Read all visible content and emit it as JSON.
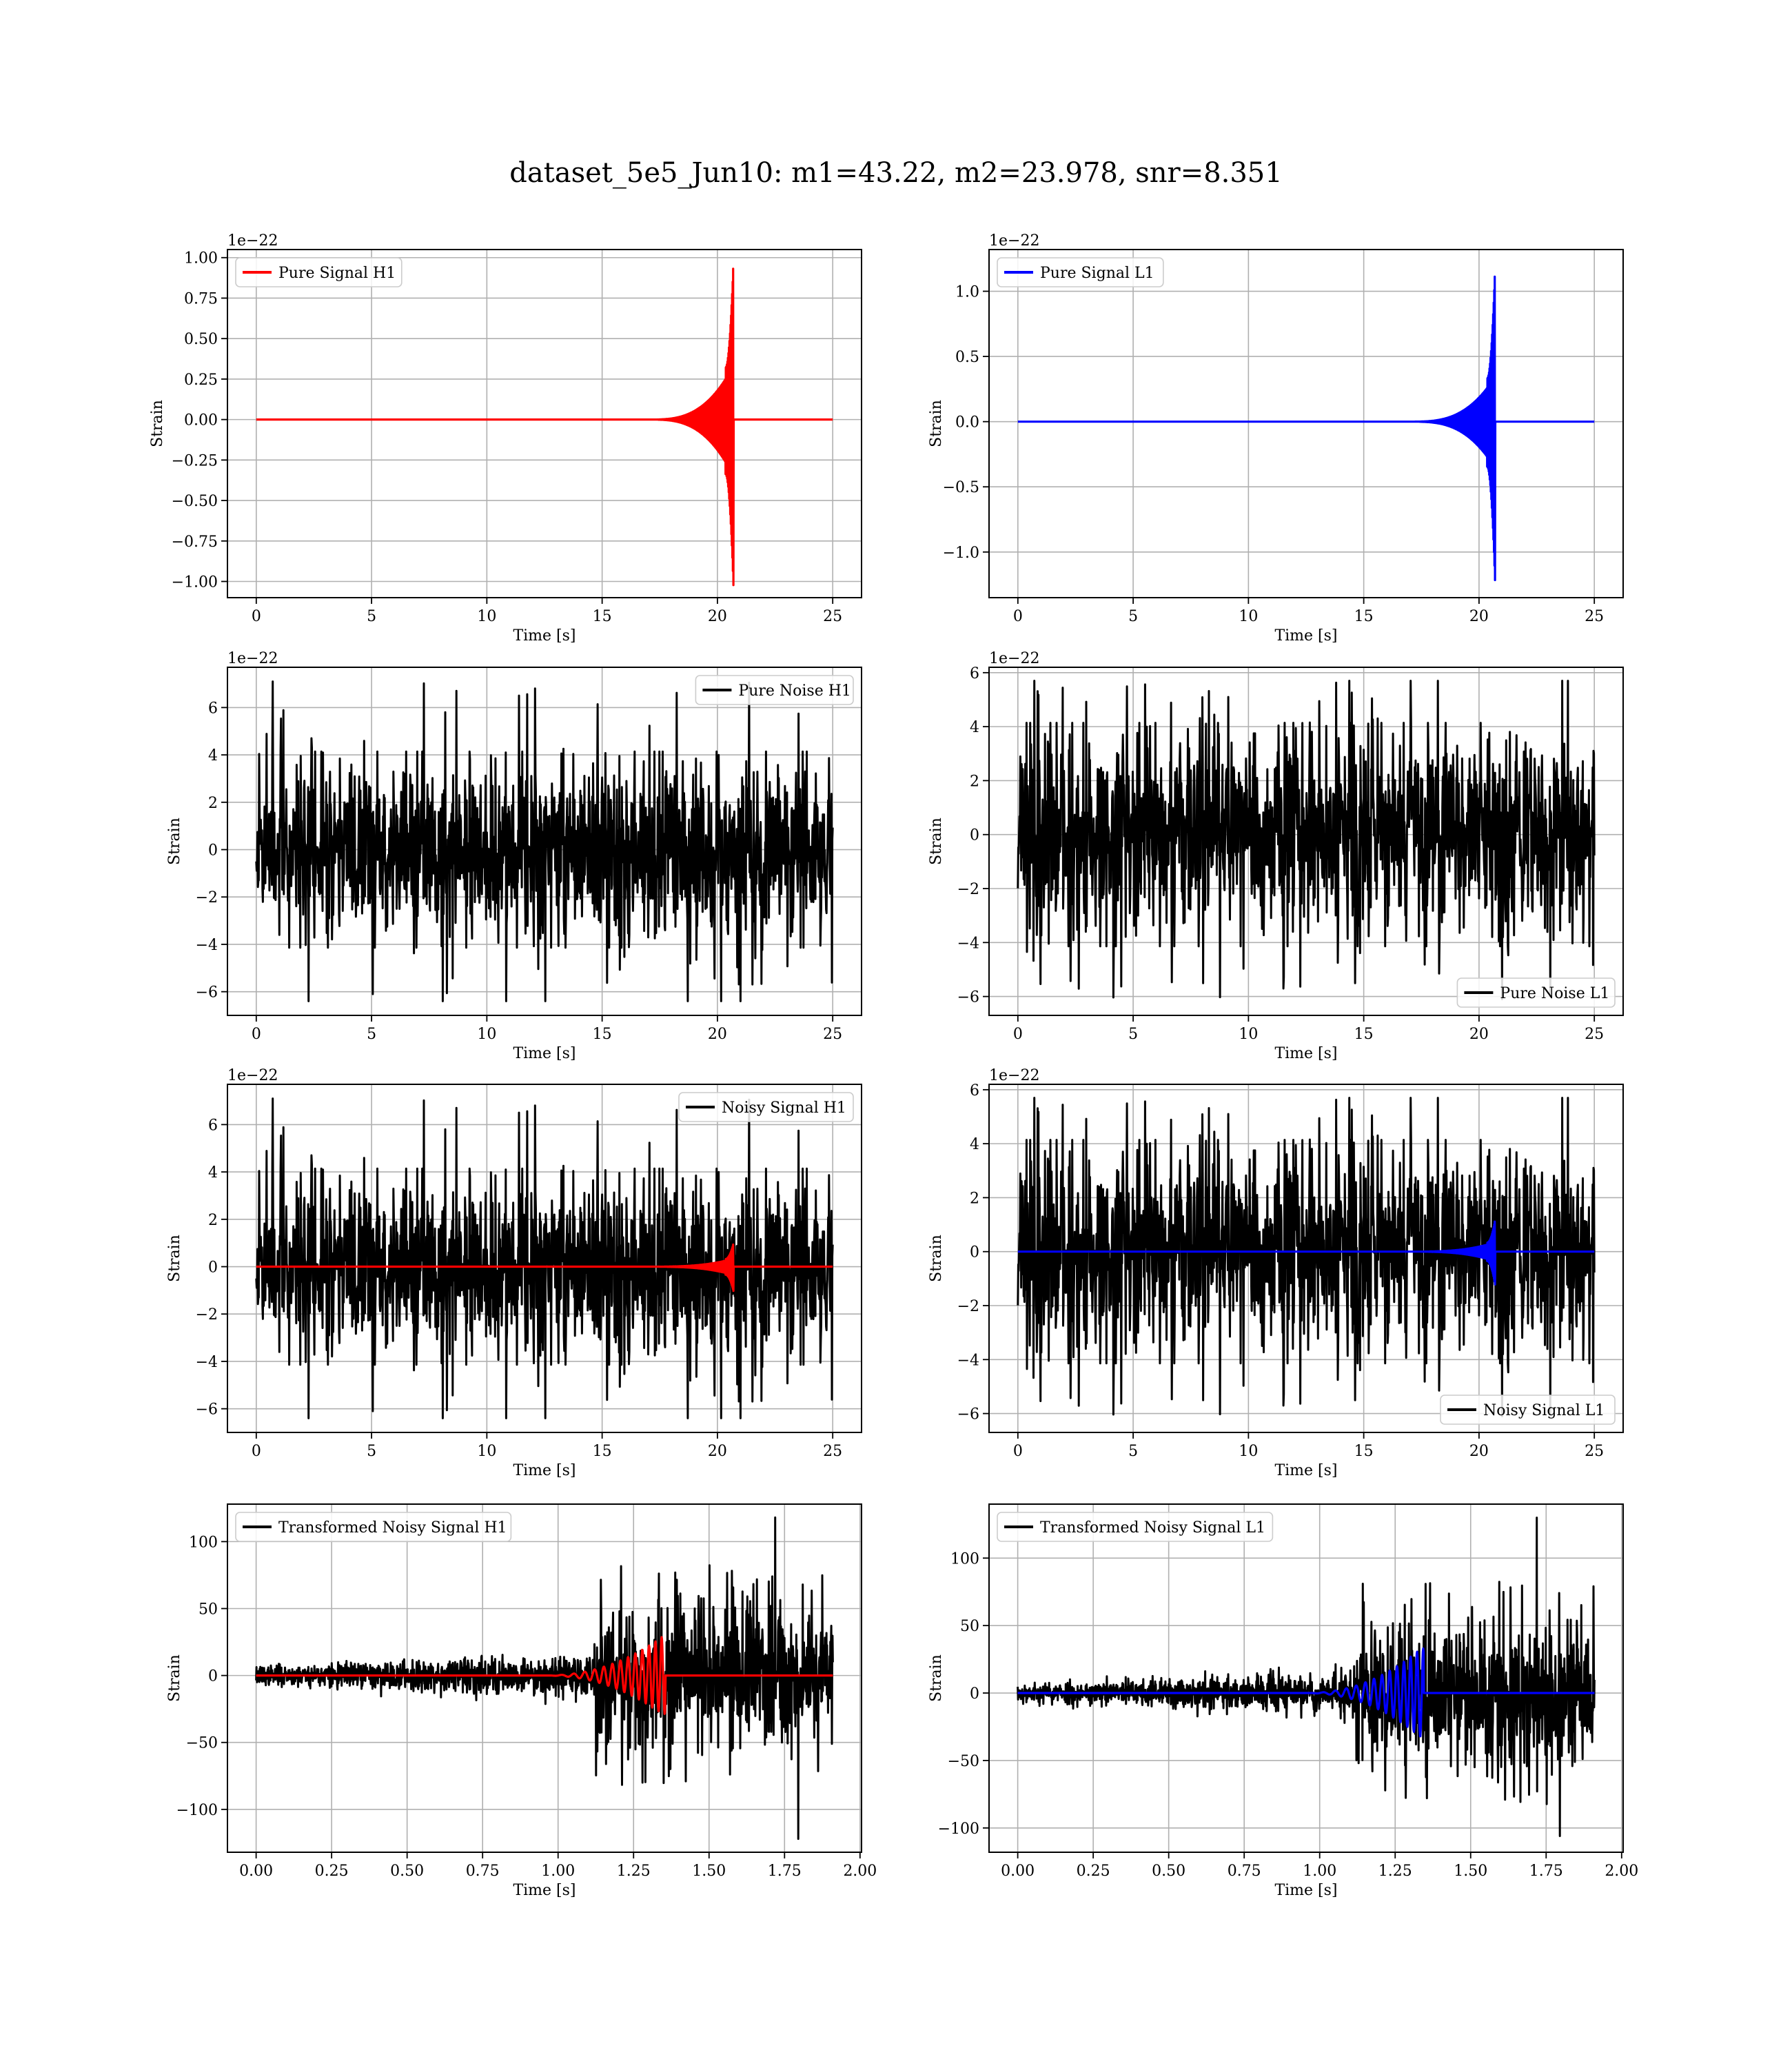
{
  "suptitle": "dataset_5e5_Jun10: m1=43.22, m2=23.978, snr=8.351",
  "chart_data": [
    {
      "id": "pure-signal-h1",
      "type": "line",
      "offset_text": "1e−22",
      "ylabel": "Strain",
      "xlabel": "Time [s]",
      "xlim": [
        -1.25,
        26.25
      ],
      "ylim": [
        -1.1,
        1.05
      ],
      "xticks": [
        0,
        5,
        10,
        15,
        20,
        25
      ],
      "xtick_labels": [
        "0",
        "5",
        "10",
        "15",
        "20",
        "25"
      ],
      "yticks": [
        -1.0,
        -0.75,
        -0.5,
        -0.25,
        0.0,
        0.25,
        0.5,
        0.75,
        1.0
      ],
      "ytick_labels": [
        "−1.00",
        "−0.75",
        "−0.50",
        "−0.25",
        "0.00",
        "0.25",
        "0.50",
        "0.75",
        "1.00"
      ],
      "grid": true,
      "legend_loc": "upper left",
      "series": [
        {
          "name": "Pure Signal H1",
          "color": "#ff0000",
          "kind": "chirp",
          "x_range": [
            0,
            25
          ],
          "peak_time": 20.7,
          "peak_pos": 1.0,
          "peak_neg": -1.05,
          "shoulder": 0.32,
          "onset": 17.0
        }
      ]
    },
    {
      "id": "pure-signal-l1",
      "type": "line",
      "offset_text": "1e−22",
      "ylabel": "Strain",
      "xlabel": "Time [s]",
      "xlim": [
        -1.25,
        26.25
      ],
      "ylim": [
        -1.35,
        1.32
      ],
      "xticks": [
        0,
        5,
        10,
        15,
        20,
        25
      ],
      "xtick_labels": [
        "0",
        "5",
        "10",
        "15",
        "20",
        "25"
      ],
      "yticks": [
        -1.0,
        -0.5,
        0.0,
        0.5,
        1.0
      ],
      "ytick_labels": [
        "−1.0",
        "−0.5",
        "0.0",
        "0.5",
        "1.0"
      ],
      "grid": true,
      "legend_loc": "upper left",
      "series": [
        {
          "name": "Pure Signal L1",
          "color": "#0000ff",
          "kind": "chirp",
          "x_range": [
            0,
            25
          ],
          "peak_time": 20.7,
          "peak_pos": 1.2,
          "peak_neg": -1.25,
          "shoulder": 0.33,
          "onset": 17.0
        }
      ]
    },
    {
      "id": "pure-noise-h1",
      "type": "line",
      "offset_text": "1e−22",
      "ylabel": "Strain",
      "xlabel": "Time [s]",
      "xlim": [
        -1.25,
        26.25
      ],
      "ylim": [
        -7.0,
        7.7
      ],
      "xticks": [
        0,
        5,
        10,
        15,
        20,
        25
      ],
      "xtick_labels": [
        "0",
        "5",
        "10",
        "15",
        "20",
        "25"
      ],
      "yticks": [
        -6,
        -4,
        -2,
        0,
        2,
        4,
        6
      ],
      "ytick_labels": [
        "−6",
        "−4",
        "−2",
        "0",
        "2",
        "4",
        "6"
      ],
      "grid": true,
      "legend_loc": "upper right",
      "series": [
        {
          "name": "Pure Noise H1",
          "color": "#000000",
          "kind": "noise",
          "x_range": [
            0,
            25
          ],
          "envelope": 3.6,
          "max": 7.1,
          "min": -6.4,
          "seed": 11
        }
      ]
    },
    {
      "id": "pure-noise-l1",
      "type": "line",
      "offset_text": "1e−22",
      "ylabel": "Strain",
      "xlabel": "Time [s]",
      "xlim": [
        -1.25,
        26.25
      ],
      "ylim": [
        -6.7,
        6.2
      ],
      "xticks": [
        0,
        5,
        10,
        15,
        20,
        25
      ],
      "xtick_labels": [
        "0",
        "5",
        "10",
        "15",
        "20",
        "25"
      ],
      "yticks": [
        -6,
        -4,
        -2,
        0,
        2,
        4,
        6
      ],
      "ytick_labels": [
        "−6",
        "−4",
        "−2",
        "0",
        "2",
        "4",
        "6"
      ],
      "grid": true,
      "legend_loc": "lower right",
      "series": [
        {
          "name": "Pure Noise L1",
          "color": "#000000",
          "kind": "noise",
          "x_range": [
            0,
            25
          ],
          "envelope": 3.6,
          "max": 5.7,
          "min": -6.1,
          "seed": 23
        }
      ]
    },
    {
      "id": "noisy-signal-h1",
      "type": "line",
      "offset_text": "1e−22",
      "ylabel": "Strain",
      "xlabel": "Time [s]",
      "xlim": [
        -1.25,
        26.25
      ],
      "ylim": [
        -7.0,
        7.7
      ],
      "xticks": [
        0,
        5,
        10,
        15,
        20,
        25
      ],
      "xtick_labels": [
        "0",
        "5",
        "10",
        "15",
        "20",
        "25"
      ],
      "yticks": [
        -6,
        -4,
        -2,
        0,
        2,
        4,
        6
      ],
      "ytick_labels": [
        "−6",
        "−4",
        "−2",
        "0",
        "2",
        "4",
        "6"
      ],
      "grid": true,
      "legend_loc": "upper right",
      "series": [
        {
          "name": "Noisy Signal H1",
          "color": "#000000",
          "kind": "noise",
          "x_range": [
            0,
            25
          ],
          "envelope": 3.6,
          "max": 7.1,
          "min": -6.4,
          "seed": 11
        },
        {
          "name": "",
          "color": "#ff0000",
          "kind": "chirp",
          "x_range": [
            0,
            25
          ],
          "peak_time": 20.7,
          "peak_pos": 1.0,
          "peak_neg": -1.05,
          "shoulder": 0.32,
          "onset": 17.0
        }
      ]
    },
    {
      "id": "noisy-signal-l1",
      "type": "line",
      "offset_text": "1e−22",
      "ylabel": "Strain",
      "xlabel": "Time [s]",
      "xlim": [
        -1.25,
        26.25
      ],
      "ylim": [
        -6.7,
        6.2
      ],
      "xticks": [
        0,
        5,
        10,
        15,
        20,
        25
      ],
      "xtick_labels": [
        "0",
        "5",
        "10",
        "15",
        "20",
        "25"
      ],
      "yticks": [
        -6,
        -4,
        -2,
        0,
        2,
        4,
        6
      ],
      "ytick_labels": [
        "−6",
        "−4",
        "−2",
        "0",
        "2",
        "4",
        "6"
      ],
      "grid": true,
      "legend_loc": "lower right",
      "series": [
        {
          "name": "Noisy Signal L1",
          "color": "#000000",
          "kind": "noise",
          "x_range": [
            0,
            25
          ],
          "envelope": 3.6,
          "max": 5.7,
          "min": -6.1,
          "seed": 23
        },
        {
          "name": "",
          "color": "#0000ff",
          "kind": "chirp",
          "x_range": [
            0,
            25
          ],
          "peak_time": 20.7,
          "peak_pos": 1.2,
          "peak_neg": -1.25,
          "shoulder": 0.33,
          "onset": 17.0
        }
      ]
    },
    {
      "id": "transformed-noisy-signal-h1",
      "type": "line",
      "offset_text": "",
      "ylabel": "Strain",
      "xlabel": "Time [s]",
      "xlim": [
        -0.095,
        2.005
      ],
      "ylim": [
        -132,
        128
      ],
      "xticks": [
        0.0,
        0.25,
        0.5,
        0.75,
        1.0,
        1.25,
        1.5,
        1.75,
        2.0
      ],
      "xtick_labels": [
        "0.00",
        "0.25",
        "0.50",
        "0.75",
        "1.00",
        "1.25",
        "1.50",
        "1.75",
        "2.00"
      ],
      "yticks": [
        -100,
        -50,
        0,
        50,
        100
      ],
      "ytick_labels": [
        "−100",
        "−50",
        "0",
        "50",
        "100"
      ],
      "grid": true,
      "legend_loc": "upper left",
      "series": [
        {
          "name": "Transformed Noisy Signal H1",
          "color": "#000000",
          "kind": "whitened",
          "x_range": [
            0,
            1.91
          ],
          "jump_time": 1.12,
          "low_amp": 6,
          "high_amp": 38,
          "max": 118,
          "min": -122,
          "seed": 37
        },
        {
          "name": "",
          "color": "#ff0000",
          "kind": "whitened-chirp",
          "x_range": [
            0,
            1.91
          ],
          "peak_time": 1.345,
          "peak": 29,
          "onset": 0.95
        }
      ]
    },
    {
      "id": "transformed-noisy-signal-l1",
      "type": "line",
      "offset_text": "",
      "ylabel": "Strain",
      "xlabel": "Time [s]",
      "xlim": [
        -0.095,
        2.005
      ],
      "ylim": [
        -118,
        140
      ],
      "xticks": [
        0.0,
        0.25,
        0.5,
        0.75,
        1.0,
        1.25,
        1.5,
        1.75,
        2.0
      ],
      "xtick_labels": [
        "0.00",
        "0.25",
        "0.50",
        "0.75",
        "1.00",
        "1.25",
        "1.50",
        "1.75",
        "2.00"
      ],
      "yticks": [
        -100,
        -50,
        0,
        50,
        100
      ],
      "ytick_labels": [
        "−100",
        "−50",
        "0",
        "50",
        "100"
      ],
      "grid": true,
      "legend_loc": "upper left",
      "series": [
        {
          "name": "Transformed Noisy Signal L1",
          "color": "#000000",
          "kind": "whitened",
          "x_range": [
            0,
            1.91
          ],
          "jump_time": 1.12,
          "low_amp": 6,
          "high_amp": 38,
          "max": 130,
          "min": -106,
          "seed": 53
        },
        {
          "name": "",
          "color": "#0000ff",
          "kind": "whitened-chirp",
          "x_range": [
            0,
            1.91
          ],
          "peak_time": 1.335,
          "peak": 33,
          "onset": 0.95
        }
      ]
    }
  ]
}
